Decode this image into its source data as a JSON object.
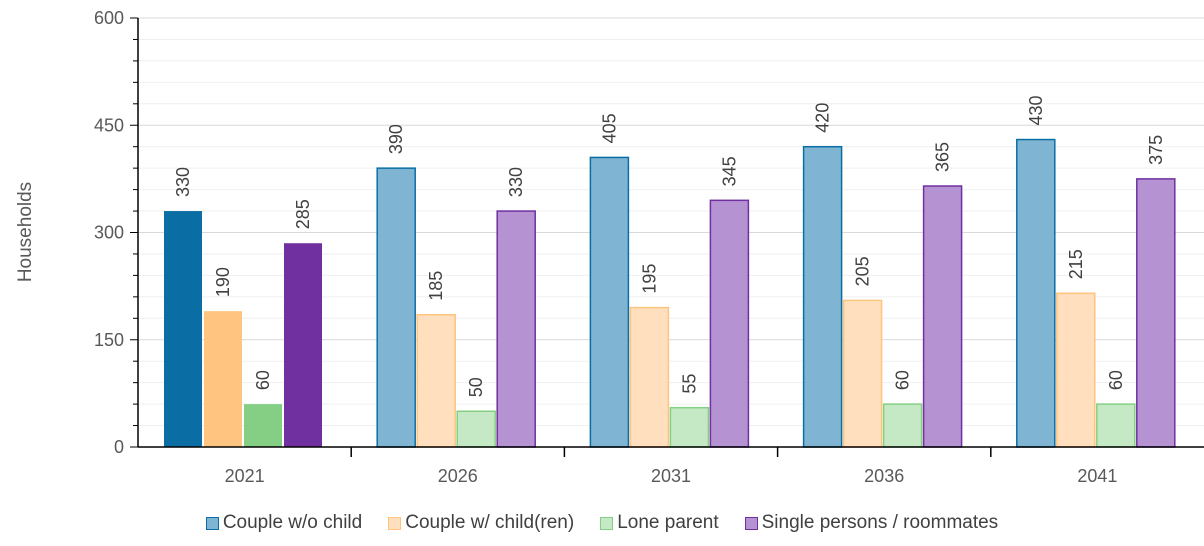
{
  "chart_data": {
    "type": "bar",
    "title": "",
    "xlabel": "",
    "ylabel": "Households",
    "ylim": [
      0,
      600
    ],
    "yticks": [
      0,
      150,
      300,
      450,
      600
    ],
    "grid": true,
    "legend_position": "bottom",
    "categories": [
      "2021",
      "2026",
      "2031",
      "2036",
      "2041"
    ],
    "series": [
      {
        "name": "Couple w/o child",
        "values": [
          330,
          390,
          405,
          420,
          430
        ],
        "color": "#0a6ea5",
        "light_color": "#7fb5d3"
      },
      {
        "name": "Couple w/ child(ren)",
        "values": [
          190,
          185,
          195,
          205,
          215
        ],
        "color": "#ffc47f",
        "light_color": "#ffdfbd"
      },
      {
        "name": "Lone parent",
        "values": [
          60,
          50,
          55,
          60,
          60
        ],
        "color": "#85cf85",
        "light_color": "#c4e9c4"
      },
      {
        "name": "Single persons / roommates",
        "values": [
          285,
          330,
          345,
          365,
          375
        ],
        "color": "#7030a0",
        "light_color": "#b592d2"
      }
    ]
  }
}
